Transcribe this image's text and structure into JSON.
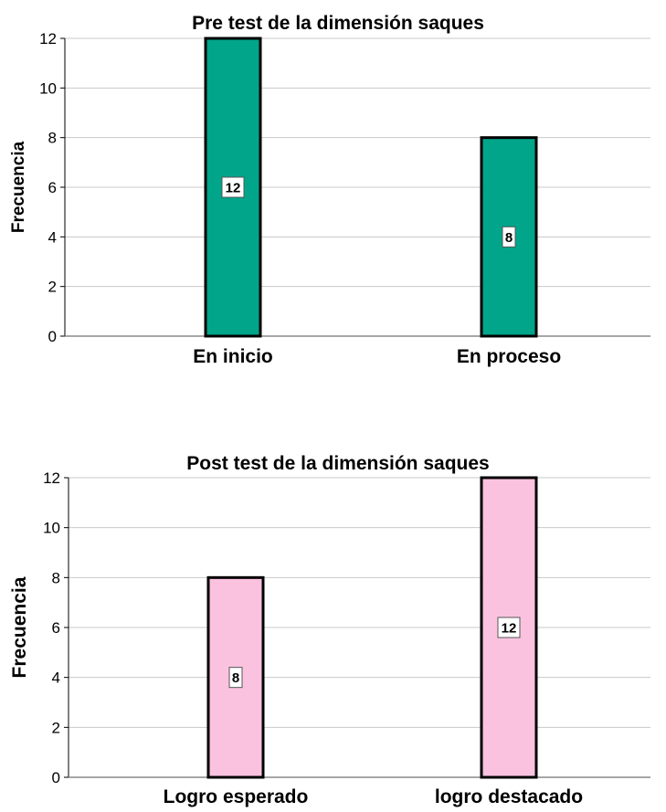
{
  "chart_data": [
    {
      "type": "bar",
      "title": "Pre test de la dimensión saques",
      "xlabel": "",
      "ylabel": "Frecuencia",
      "categories": [
        "En inicio",
        "En proceso"
      ],
      "values": [
        12,
        8
      ],
      "data_labels": [
        "12",
        "8"
      ],
      "ylim": [
        0,
        12
      ],
      "yticks": [
        0,
        2,
        4,
        6,
        8,
        10,
        12
      ],
      "grid": true,
      "bar_color": "#00a58a"
    },
    {
      "type": "bar",
      "title": "Post test de la dimensión  saques",
      "xlabel": "",
      "ylabel": "Frecuencia",
      "categories": [
        "Logro esperado",
        "logro destacado"
      ],
      "values": [
        8,
        12
      ],
      "data_labels": [
        "8",
        "12"
      ],
      "ylim": [
        0,
        12
      ],
      "yticks": [
        0,
        2,
        4,
        6,
        8,
        10,
        12
      ],
      "grid": true,
      "bar_color": "#fbc2e0"
    }
  ]
}
